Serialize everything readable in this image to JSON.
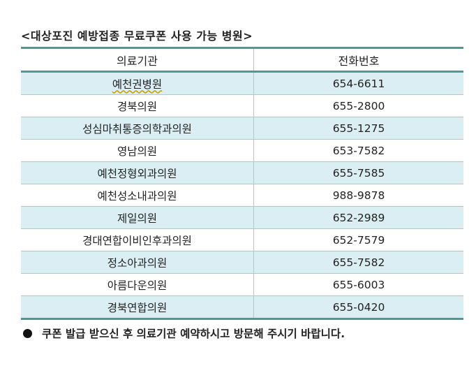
{
  "title": "<대상포진 예방접종 무료쿠폰 사용 가능 병원>",
  "table": {
    "headers": [
      "의료기관",
      "전화번호"
    ],
    "rows": [
      {
        "name": "예천권병원",
        "phone": "654-6611"
      },
      {
        "name": "경북의원",
        "phone": "655-2800"
      },
      {
        "name": "성심마취통증의학과의원",
        "phone": "655-1275"
      },
      {
        "name": "영남의원",
        "phone": "653-7582"
      },
      {
        "name": "예천정형외과의원",
        "phone": "655-7585"
      },
      {
        "name": "예천성소내과의원",
        "phone": "988-9878"
      },
      {
        "name": "제일의원",
        "phone": "652-2989"
      },
      {
        "name": "경대연합이비인후과의원",
        "phone": "652-7579"
      },
      {
        "name": "정소아과의원",
        "phone": "655-7582"
      },
      {
        "name": "아름다운의원",
        "phone": "655-6003"
      },
      {
        "name": "경북연합의원",
        "phone": "655-0420"
      }
    ]
  },
  "note": "쿠폰 발급 받으신 후 의료기관 예약하시고 방문해 주시기 바랍니다."
}
